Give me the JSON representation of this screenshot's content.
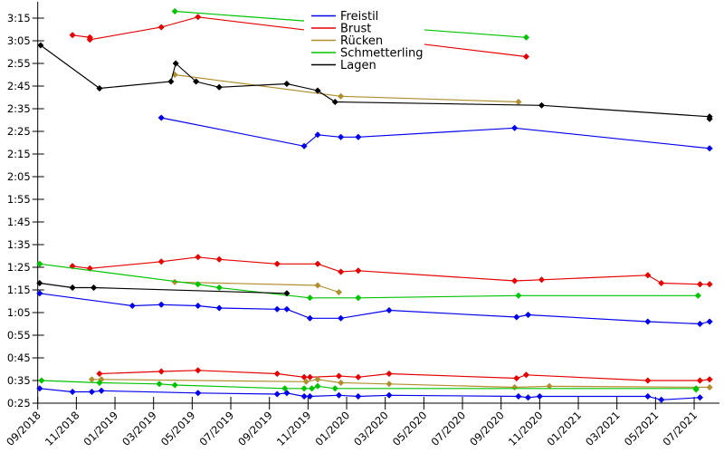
{
  "chart_data": {
    "type": "line",
    "title": "",
    "point_format": "[months_since_09_2018, time_seconds]",
    "x_axis": {
      "tick_labels": [
        "09/2018",
        "11/2018",
        "01/2019",
        "03/2019",
        "05/2019",
        "07/2019",
        "09/2019",
        "11/2019",
        "01/2020",
        "03/2020",
        "05/2020",
        "07/2020",
        "09/2020",
        "11/2020",
        "01/2021",
        "03/2021",
        "05/2021",
        "07/2021"
      ],
      "tick_step_months": 2,
      "label_rotation_deg": -45,
      "xlim_months": [
        0,
        35.3
      ]
    },
    "y_axis": {
      "tick_labels": [
        "0:25",
        "0:35",
        "0:45",
        "0:55",
        "1:05",
        "1:15",
        "1:25",
        "1:35",
        "1:45",
        "1:55",
        "2:05",
        "2:15",
        "2:25",
        "2:35",
        "2:45",
        "2:55",
        "3:05",
        "3:15"
      ],
      "min_seconds": 25,
      "step_seconds": 10,
      "unit": "m:ss",
      "ylim_seconds": [
        25,
        203
      ]
    },
    "legend": {
      "position": "top-center",
      "opaque_background": true,
      "entries": [
        {
          "label": "Freistil",
          "color": "#0000ee"
        },
        {
          "label": "Brust",
          "color": "#e60000"
        },
        {
          "label": "Rücken",
          "color": "#b08e2e"
        },
        {
          "label": "Schmetterling",
          "color": "#00c400"
        },
        {
          "label": "Lagen",
          "color": "#000000"
        }
      ]
    },
    "marker": "diamond",
    "series": [
      {
        "name": "Freistil",
        "slug": "freistil",
        "color": "#0000ee",
        "segments": [
          [
            [
              6.4,
              151
            ],
            [
              13.8,
              138.5
            ],
            [
              14.5,
              143.5
            ],
            [
              15.7,
              142.5
            ],
            [
              16.6,
              142.5
            ],
            [
              24.7,
              146.5
            ],
            [
              34.8,
              137.5
            ]
          ],
          [
            [
              0.1,
              73.5
            ],
            [
              4.9,
              68
            ],
            [
              6.4,
              68.5
            ],
            [
              8.3,
              68
            ],
            [
              9.4,
              67
            ],
            [
              12.4,
              66.5
            ],
            [
              12.9,
              66.5
            ],
            [
              14.1,
              62.5
            ],
            [
              15.7,
              62.5
            ],
            [
              18.2,
              66
            ],
            [
              24.8,
              63
            ],
            [
              25.4,
              64
            ],
            [
              31.6,
              61
            ],
            [
              34.3,
              60
            ],
            [
              34.8,
              61
            ]
          ],
          [
            [
              0.1,
              31.5
            ],
            [
              1.8,
              30
            ],
            [
              2.8,
              30
            ],
            [
              3.3,
              30.5
            ],
            [
              8.3,
              29.5
            ],
            [
              12.4,
              29
            ],
            [
              12.9,
              29.5
            ],
            [
              13.8,
              28
            ],
            [
              14.1,
              28
            ],
            [
              15.6,
              28.5
            ],
            [
              16.6,
              28
            ],
            [
              18.2,
              28.5
            ],
            [
              24.9,
              28
            ],
            [
              25.4,
              27.5
            ],
            [
              26,
              28
            ],
            [
              31.6,
              28
            ],
            [
              32.3,
              26.5
            ],
            [
              34.3,
              27.5
            ]
          ]
        ]
      },
      {
        "name": "Brust",
        "slug": "brust",
        "color": "#e60000",
        "segments": [
          [
            [
              1.8,
              187.5
            ],
            [
              2.7,
              186.5
            ],
            [
              2.7,
              185.5
            ],
            [
              6.4,
              191
            ],
            [
              8.3,
              195.5
            ],
            [
              25.3,
              178
            ]
          ],
          [
            [
              1.8,
              85.5
            ],
            [
              2.7,
              84.5
            ],
            [
              6.4,
              87.5
            ],
            [
              8.3,
              89.5
            ],
            [
              9.4,
              88.5
            ],
            [
              12.4,
              86.5
            ],
            [
              14.5,
              86.5
            ],
            [
              15.7,
              83
            ],
            [
              16.6,
              83.5
            ],
            [
              24.7,
              79
            ],
            [
              26.1,
              79.5
            ],
            [
              31.6,
              81.5
            ],
            [
              32.3,
              78
            ],
            [
              34.3,
              77.5
            ],
            [
              34.8,
              77.5
            ]
          ],
          [
            [
              3.2,
              38
            ],
            [
              6.4,
              39
            ],
            [
              8.3,
              39.5
            ],
            [
              12.4,
              38
            ],
            [
              13.8,
              36.5
            ],
            [
              14.1,
              36.5
            ],
            [
              15.6,
              37
            ],
            [
              16.6,
              36.5
            ],
            [
              18.2,
              38
            ],
            [
              24.8,
              36
            ],
            [
              25.3,
              37.5
            ],
            [
              31.6,
              35
            ],
            [
              34.3,
              35
            ],
            [
              34.8,
              35.5
            ]
          ]
        ]
      },
      {
        "name": "Rücken",
        "slug": "ruecken",
        "color": "#b08e2e",
        "segments": [
          [
            [
              7.1,
              170
            ],
            [
              15.7,
              160.5
            ],
            [
              24.9,
              158
            ]
          ],
          [
            [
              7.1,
              78.5
            ],
            [
              14.5,
              77
            ],
            [
              15.6,
              74
            ]
          ],
          [
            [
              2.8,
              35.5
            ],
            [
              3.3,
              35.5
            ],
            [
              13.9,
              34.5
            ],
            [
              14.5,
              35.5
            ],
            [
              15.7,
              34
            ],
            [
              18.2,
              33.5
            ],
            [
              24.7,
              32
            ],
            [
              26.5,
              32.5
            ],
            [
              34.8,
              32
            ]
          ]
        ]
      },
      {
        "name": "Schmetterling",
        "slug": "schmetterling",
        "color": "#00c400",
        "segments": [
          [
            [
              7.1,
              198
            ],
            [
              25.3,
              186.5
            ]
          ],
          [
            [
              0.1,
              86.5
            ],
            [
              8.3,
              77.5
            ],
            [
              9.4,
              76
            ],
            [
              14.1,
              71.5
            ],
            [
              16.6,
              71.5
            ],
            [
              24.9,
              72.5
            ],
            [
              34.2,
              72.5
            ]
          ],
          [
            [
              0.2,
              35
            ],
            [
              3.2,
              34
            ],
            [
              6.3,
              33.5
            ],
            [
              7.1,
              33
            ],
            [
              12.8,
              31.5
            ],
            [
              13.8,
              31.5
            ],
            [
              14.2,
              31.5
            ],
            [
              14.5,
              32.5
            ],
            [
              15.4,
              31.5
            ],
            [
              34.1,
              31.5
            ],
            [
              34.1,
              31
            ]
          ]
        ]
      },
      {
        "name": "Lagen",
        "slug": "lagen",
        "color": "#000000",
        "segments": [
          [
            [
              0.15,
              183
            ],
            [
              3.2,
              164
            ],
            [
              6.9,
              167
            ],
            [
              7.15,
              175
            ],
            [
              8.2,
              167
            ],
            [
              9.4,
              164.5
            ],
            [
              12.9,
              166
            ],
            [
              14.5,
              163
            ],
            [
              15.4,
              158
            ],
            [
              26.1,
              156.5
            ],
            [
              34.8,
              151.5
            ],
            [
              34.8,
              150.5
            ]
          ],
          [
            [
              0.1,
              78
            ],
            [
              1.8,
              76
            ],
            [
              2.9,
              76
            ],
            [
              12.9,
              73.5
            ]
          ]
        ]
      }
    ]
  }
}
